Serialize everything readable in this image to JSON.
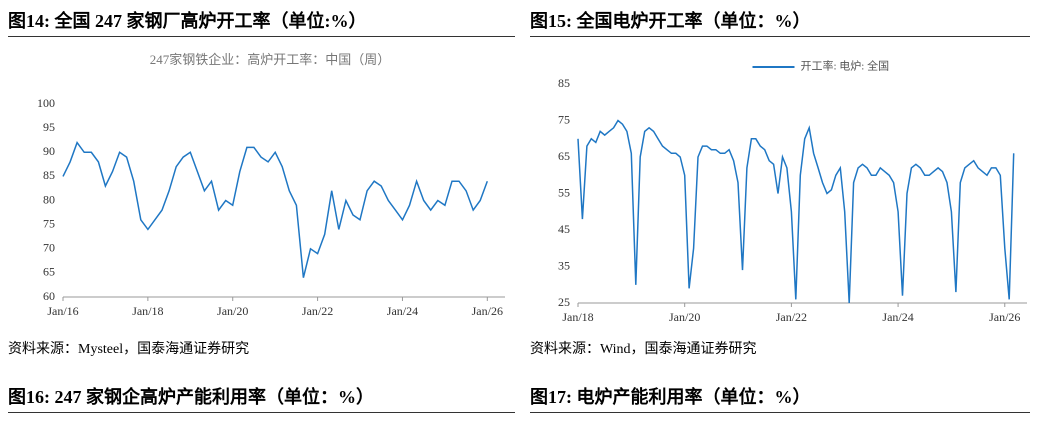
{
  "panels": [
    {
      "caption": "图14:  全国 247 家钢厂高炉开工率（单位:%）",
      "source": "资料来源：Mysteel，国泰海通证券研究"
    },
    {
      "caption": "图15:  全国电炉开工率（单位：%）",
      "source": "资料来源：Wind，国泰海通证券研究"
    }
  ],
  "next_captions": [
    "图16:  247 家钢企高炉产能利用率（单位：%）",
    "图17:  电炉产能利用率（单位：%）"
  ],
  "chart_data": [
    {
      "type": "line",
      "title": "247家钢铁企业：高炉开工率：中国（周）",
      "x": [
        "2016-01",
        "2016-03",
        "2016-05",
        "2016-07",
        "2016-09",
        "2016-11",
        "2017-01",
        "2017-03",
        "2017-05",
        "2017-07",
        "2017-09",
        "2017-11",
        "2018-01",
        "2018-03",
        "2018-05",
        "2018-07",
        "2018-09",
        "2018-11",
        "2019-01",
        "2019-03",
        "2019-05",
        "2019-07",
        "2019-09",
        "2019-11",
        "2020-01",
        "2020-03",
        "2020-05",
        "2020-07",
        "2020-09",
        "2020-11",
        "2021-01",
        "2021-03",
        "2021-05",
        "2021-07",
        "2021-09",
        "2021-11",
        "2022-01",
        "2022-03",
        "2022-05",
        "2022-07",
        "2022-09",
        "2022-11",
        "2023-01",
        "2023-03",
        "2023-05",
        "2023-07",
        "2023-09",
        "2023-11",
        "2024-01",
        "2024-03",
        "2024-05",
        "2024-07",
        "2024-09",
        "2024-11",
        "2025-01",
        "2025-03",
        "2025-05",
        "2025-07",
        "2025-09",
        "2025-11",
        "2026-01"
      ],
      "series": [
        {
          "color": "#1f77c4",
          "values": [
            85,
            88,
            92,
            90,
            90,
            88,
            83,
            86,
            90,
            89,
            84,
            76,
            74,
            76,
            78,
            82,
            87,
            89,
            90,
            86,
            82,
            84,
            78,
            80,
            79,
            86,
            91,
            91,
            89,
            88,
            90,
            87,
            82,
            79,
            64,
            70,
            69,
            73,
            82,
            74,
            80,
            77,
            76,
            82,
            84,
            83,
            80,
            78,
            76,
            79,
            84,
            80,
            78,
            80,
            79,
            84,
            84,
            82,
            78,
            80,
            84
          ]
        }
      ],
      "xlim": [
        "2016-01",
        "2026-06"
      ],
      "xticks": [
        {
          "value": "2016-01",
          "label": "Jan/16"
        },
        {
          "value": "2018-01",
          "label": "Jan/18"
        },
        {
          "value": "2020-01",
          "label": "Jan/20"
        },
        {
          "value": "2022-01",
          "label": "Jan/22"
        },
        {
          "value": "2024-01",
          "label": "Jan/24"
        },
        {
          "value": "2026-01",
          "label": "Jan/26"
        }
      ],
      "ylim": [
        60,
        100
      ],
      "yticks": [
        60,
        65,
        70,
        75,
        80,
        85,
        90,
        95,
        100
      ]
    },
    {
      "type": "line",
      "x": [
        "2018-01",
        "2018-02",
        "2018-03",
        "2018-04",
        "2018-05",
        "2018-06",
        "2018-07",
        "2018-08",
        "2018-09",
        "2018-10",
        "2018-11",
        "2018-12",
        "2019-01",
        "2019-02",
        "2019-03",
        "2019-04",
        "2019-05",
        "2019-06",
        "2019-07",
        "2019-08",
        "2019-09",
        "2019-10",
        "2019-11",
        "2019-12",
        "2020-01",
        "2020-02",
        "2020-03",
        "2020-04",
        "2020-05",
        "2020-06",
        "2020-07",
        "2020-08",
        "2020-09",
        "2020-10",
        "2020-11",
        "2020-12",
        "2021-01",
        "2021-02",
        "2021-03",
        "2021-04",
        "2021-05",
        "2021-06",
        "2021-07",
        "2021-08",
        "2021-09",
        "2021-10",
        "2021-11",
        "2021-12",
        "2022-01",
        "2022-02",
        "2022-03",
        "2022-04",
        "2022-05",
        "2022-06",
        "2022-07",
        "2022-08",
        "2022-09",
        "2022-10",
        "2022-11",
        "2022-12",
        "2023-01",
        "2023-02",
        "2023-03",
        "2023-04",
        "2023-05",
        "2023-06",
        "2023-07",
        "2023-08",
        "2023-09",
        "2023-10",
        "2023-11",
        "2023-12",
        "2024-01",
        "2024-02",
        "2024-03",
        "2024-04",
        "2024-05",
        "2024-06",
        "2024-07",
        "2024-08",
        "2024-09",
        "2024-10",
        "2024-11",
        "2024-12",
        "2025-01",
        "2025-02",
        "2025-03",
        "2025-04",
        "2025-05",
        "2025-06",
        "2025-07",
        "2025-08",
        "2025-09",
        "2025-10",
        "2025-11",
        "2025-12",
        "2026-01",
        "2026-02",
        "2026-03"
      ],
      "series": [
        {
          "name": "开工率: 电炉: 全国",
          "color": "#1f77c4",
          "values": [
            70,
            48,
            68,
            70,
            69,
            72,
            71,
            72,
            73,
            75,
            74,
            72,
            66,
            30,
            65,
            72,
            73,
            72,
            70,
            68,
            67,
            66,
            66,
            65,
            60,
            29,
            40,
            65,
            68,
            68,
            67,
            67,
            66,
            66,
            67,
            64,
            58,
            34,
            62,
            70,
            70,
            68,
            67,
            64,
            63,
            55,
            65,
            62,
            50,
            26,
            60,
            70,
            73,
            66,
            62,
            58,
            55,
            56,
            60,
            62,
            50,
            25,
            58,
            62,
            63,
            62,
            60,
            60,
            62,
            61,
            60,
            58,
            50,
            27,
            55,
            62,
            63,
            62,
            60,
            60,
            61,
            62,
            61,
            58,
            50,
            28,
            58,
            62,
            63,
            64,
            62,
            61,
            60,
            62,
            62,
            60,
            40,
            26,
            66
          ]
        }
      ],
      "xlim": [
        "2018-01",
        "2026-06"
      ],
      "xticks": [
        {
          "value": "2018-01",
          "label": "Jan/18"
        },
        {
          "value": "2020-01",
          "label": "Jan/20"
        },
        {
          "value": "2022-01",
          "label": "Jan/22"
        },
        {
          "value": "2024-01",
          "label": "Jan/24"
        },
        {
          "value": "2026-01",
          "label": "Jan/26"
        }
      ],
      "ylim": [
        25,
        85
      ],
      "yticks": [
        25,
        35,
        45,
        55,
        65,
        75,
        85
      ],
      "legend": "top"
    }
  ]
}
